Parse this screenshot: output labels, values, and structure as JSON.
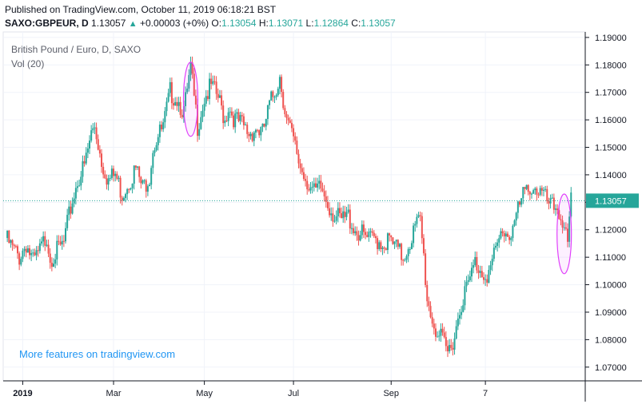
{
  "header": {
    "published": "Published on TradingView.com, October 11, 2019 06:18:21 BST",
    "symbol": "SAXO:GBPEUR, D",
    "last": "1.13057",
    "change": "+0.00003 (+0%)",
    "o_label": "O:",
    "o_val": "1.13054",
    "h_label": "H:",
    "h_val": "1.13071",
    "l_label": "L:",
    "l_val": "1.12864",
    "c_label": "C:",
    "c_val": "1.13057"
  },
  "legend": {
    "title": "British Pound / Euro, D, SAXO",
    "vol": "Vol (20)"
  },
  "promo": "More features on tradingview.com",
  "colors": {
    "up": "#26a69a",
    "down": "#ef5350",
    "grid": "#f0f3fa",
    "last_line": "#26a69a",
    "highlight": "#e040fb"
  },
  "chart_data": {
    "type": "candlestick",
    "title": "British Pound / Euro, D, SAXO",
    "ylim": [
      1.065,
      1.192
    ],
    "y_ticks": [
      "1.19000",
      "1.18000",
      "1.17000",
      "1.16000",
      "1.15000",
      "1.14000",
      "1.13000",
      "1.12000",
      "1.11000",
      "1.10000",
      "1.09000",
      "1.08000",
      "1.07000"
    ],
    "x_ticks": [
      "2019",
      "Mar",
      "May",
      "Jul",
      "Sep",
      "7"
    ],
    "last_price_label": "1.13057",
    "last_price": 1.13057,
    "close_path": [
      [
        0,
        1.117
      ],
      [
        4,
        1.113
      ],
      [
        8,
        1.11
      ],
      [
        12,
        1.115
      ],
      [
        16,
        1.108
      ],
      [
        20,
        1.112
      ],
      [
        24,
        1.118
      ],
      [
        26,
        1.11
      ],
      [
        30,
        1.112
      ],
      [
        34,
        1.115
      ],
      [
        38,
        1.128
      ],
      [
        42,
        1.138
      ],
      [
        46,
        1.143
      ],
      [
        50,
        1.155
      ],
      [
        52,
        1.158
      ],
      [
        56,
        1.145
      ],
      [
        60,
        1.138
      ],
      [
        64,
        1.14
      ],
      [
        68,
        1.133
      ],
      [
        72,
        1.138
      ],
      [
        76,
        1.142
      ],
      [
        80,
        1.135
      ],
      [
        84,
        1.14
      ],
      [
        86,
        1.15
      ],
      [
        88,
        1.153
      ],
      [
        92,
        1.157
      ],
      [
        96,
        1.17
      ],
      [
        100,
        1.168
      ],
      [
        104,
        1.163
      ],
      [
        106,
        1.17
      ],
      [
        108,
        1.178
      ],
      [
        110,
        1.168
      ],
      [
        112,
        1.158
      ],
      [
        116,
        1.168
      ],
      [
        120,
        1.172
      ],
      [
        124,
        1.168
      ],
      [
        128,
        1.16
      ],
      [
        130,
        1.165
      ],
      [
        134,
        1.16
      ],
      [
        138,
        1.158
      ],
      [
        142,
        1.155
      ],
      [
        146,
        1.157
      ],
      [
        150,
        1.155
      ],
      [
        154,
        1.165
      ],
      [
        158,
        1.172
      ],
      [
        160,
        1.176
      ],
      [
        162,
        1.168
      ],
      [
        164,
        1.16
      ],
      [
        168,
        1.152
      ],
      [
        172,
        1.143
      ],
      [
        176,
        1.138
      ],
      [
        180,
        1.133
      ],
      [
        184,
        1.135
      ],
      [
        188,
        1.13
      ],
      [
        192,
        1.125
      ],
      [
        196,
        1.123
      ],
      [
        200,
        1.125
      ],
      [
        204,
        1.12
      ],
      [
        208,
        1.118
      ],
      [
        212,
        1.116
      ],
      [
        216,
        1.117
      ],
      [
        220,
        1.115
      ],
      [
        224,
        1.116
      ],
      [
        228,
        1.113
      ],
      [
        232,
        1.11
      ],
      [
        236,
        1.116
      ],
      [
        240,
        1.122
      ],
      [
        242,
        1.123
      ],
      [
        244,
        1.11
      ],
      [
        246,
        1.095
      ],
      [
        248,
        1.09
      ],
      [
        250,
        1.085
      ],
      [
        254,
        1.08
      ],
      [
        258,
        1.075
      ],
      [
        262,
        1.082
      ],
      [
        266,
        1.094
      ],
      [
        270,
        1.1
      ],
      [
        274,
        1.108
      ],
      [
        278,
        1.105
      ],
      [
        282,
        1.104
      ],
      [
        286,
        1.112
      ],
      [
        290,
        1.12
      ],
      [
        294,
        1.118
      ],
      [
        298,
        1.125
      ],
      [
        302,
        1.132
      ],
      [
        306,
        1.136
      ],
      [
        310,
        1.135
      ],
      [
        314,
        1.132
      ],
      [
        318,
        1.128
      ],
      [
        322,
        1.128
      ],
      [
        324,
        1.125
      ],
      [
        326,
        1.122
      ],
      [
        328,
        1.113
      ],
      [
        330,
        1.13
      ]
    ],
    "ellipses": [
      {
        "x": 108,
        "y_low": 1.154,
        "y_high": 1.181
      },
      {
        "x": 326,
        "y_low": 1.104,
        "y_high": 1.133
      }
    ]
  }
}
